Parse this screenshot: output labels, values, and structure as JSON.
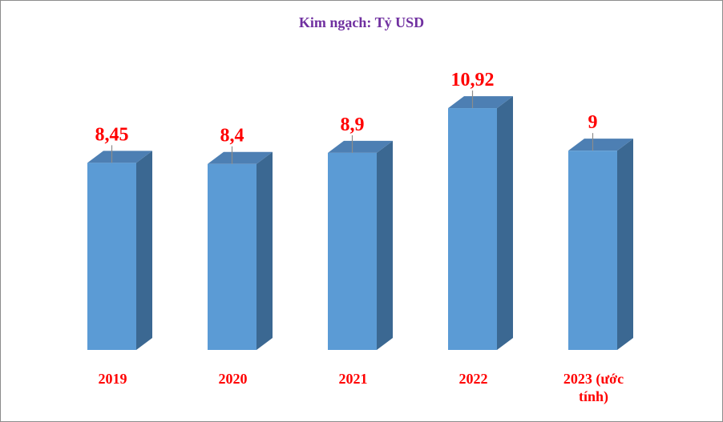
{
  "chart_data": {
    "type": "bar",
    "title": "Kim ngạch: Tỷ USD",
    "categories": [
      "2019",
      "2020",
      "2021",
      "2022",
      "2023 (ước tính)"
    ],
    "category_lines": [
      [
        "2019"
      ],
      [
        "2020"
      ],
      [
        "2021"
      ],
      [
        "2022"
      ],
      [
        "2023 (ước",
        "tính)"
      ]
    ],
    "values": [
      8.45,
      8.4,
      8.9,
      10.92,
      9
    ],
    "value_labels": [
      "8,45",
      "8,4",
      "8,9",
      "10,92",
      "9"
    ],
    "ylim": [
      0,
      12.55
    ],
    "grid": false,
    "legend": false,
    "colors": {
      "bar_front": "#5b9bd5",
      "bar_side": "#3b6892",
      "bar_top": "#4d7fb3",
      "data_label": "#ff0000",
      "category_label": "#ff0000",
      "title": "#7030a0",
      "leader_line": "#8c8c8c"
    }
  }
}
